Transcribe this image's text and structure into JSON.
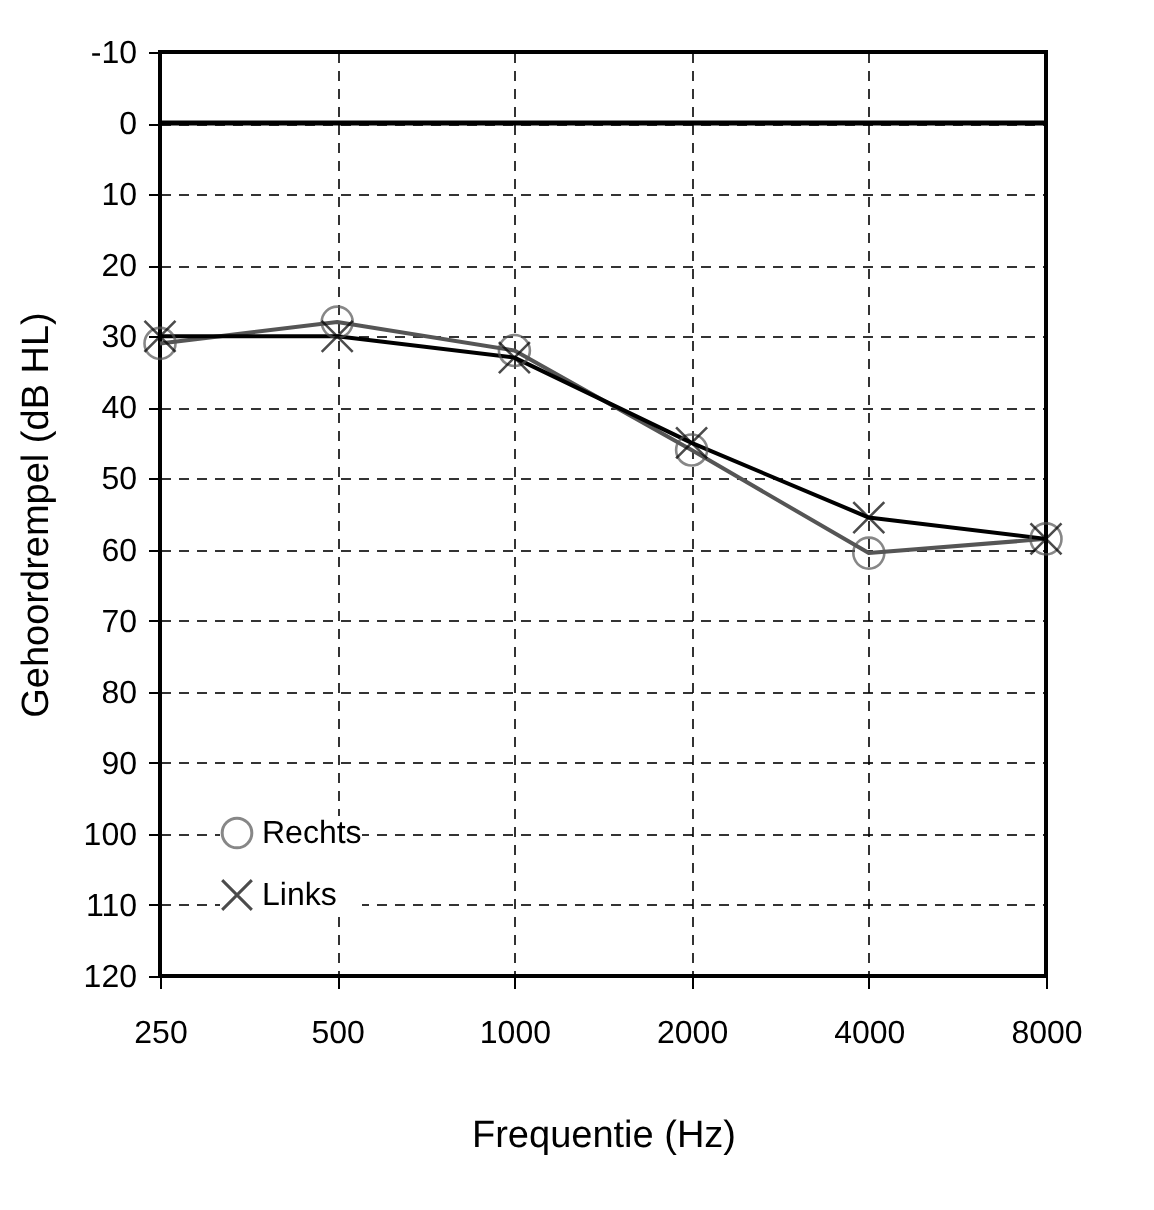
{
  "chart_data": {
    "type": "line",
    "xlabel": "Frequentie (Hz)",
    "ylabel": "Gehoordrempel (dB HL)",
    "categories": [
      "250",
      "500",
      "1000",
      "2000",
      "4000",
      "8000"
    ],
    "series": [
      {
        "name": "Rechts",
        "color": "#555555",
        "marker": "circle",
        "values": [
          31,
          28,
          32,
          46,
          60.5,
          58.5
        ]
      },
      {
        "name": "Links",
        "color": "#000000",
        "marker": "cross",
        "values": [
          30,
          30,
          33,
          45,
          55.5,
          58.5
        ]
      }
    ],
    "ylim": [
      120,
      -10
    ],
    "yticks": [
      -10,
      0,
      10,
      20,
      30,
      40,
      50,
      60,
      70,
      80,
      90,
      100,
      110,
      120
    ],
    "ref_lines": [
      {
        "axis": "y",
        "value": 0,
        "color": "#000000"
      }
    ],
    "grid": true,
    "legend": "bottom left",
    "line_style": "solid"
  }
}
